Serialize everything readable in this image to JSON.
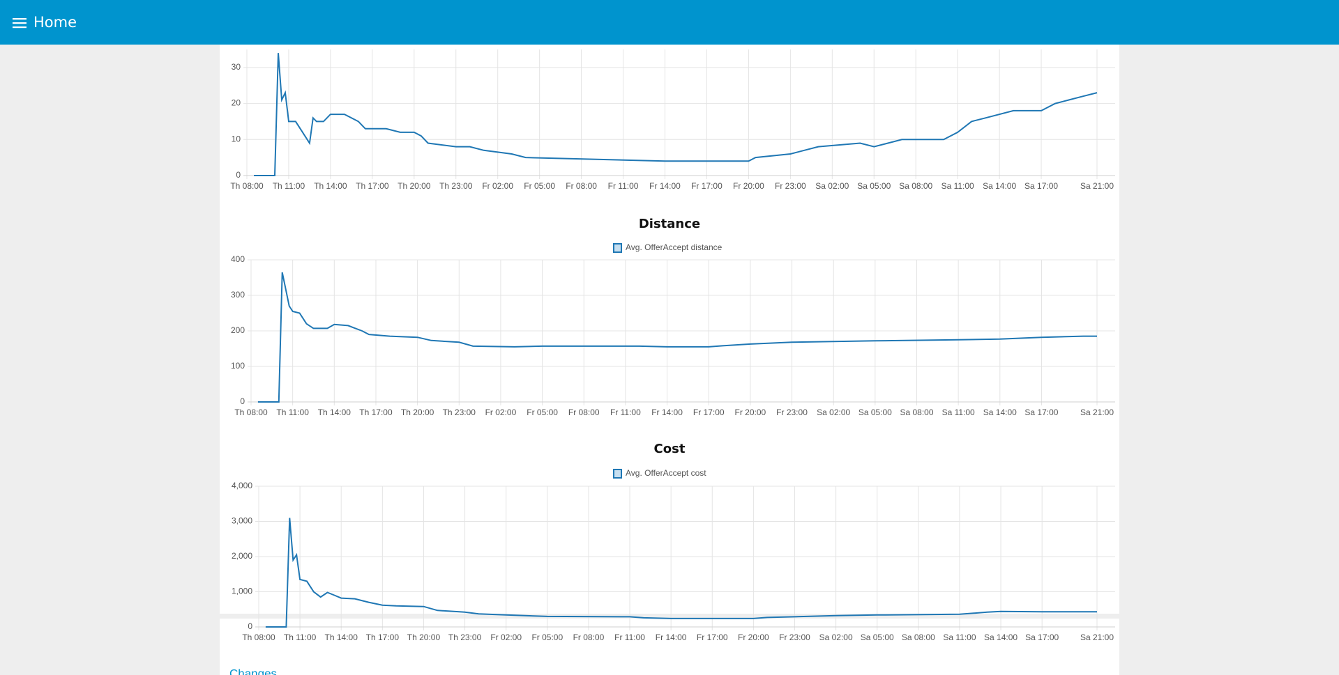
{
  "header": {
    "title": "Home"
  },
  "groups": [
    {
      "title": "Changes"
    }
  ],
  "chart_data": [
    {
      "type": "line",
      "series": [
        {
          "color": "#1f77b4",
          "x": [
            "Th 08:30",
            "Th 10:00",
            "Th 10:15",
            "Th 10:30",
            "Th 10:45",
            "Th 11:00",
            "Th 11:30",
            "Th 12:00",
            "Th 12:30",
            "Th 12:45",
            "Th 13:00",
            "Th 13:30",
            "Th 14:00",
            "Th 15:00",
            "Th 16:00",
            "Th 16:30",
            "Th 18:00",
            "Th 19:00",
            "Th 20:00",
            "Th 20:30",
            "Th 21:00",
            "Th 23:00",
            "Fr 00:00",
            "Fr 01:00",
            "Fr 03:00",
            "Fr 04:00",
            "Fr 14:00",
            "Fr 20:00",
            "Fr 20:30",
            "Fr 23:00",
            "Sa 00:00",
            "Sa 01:00",
            "Sa 04:00",
            "Sa 05:00",
            "Sa 06:00",
            "Sa 07:00",
            "Sa 10:00",
            "Sa 11:00",
            "Sa 12:00",
            "Sa 13:00",
            "Sa 15:00",
            "Sa 17:00",
            "Sa 18:00",
            "Sa 19:00",
            "Sa 20:00",
            "Sa 21:00"
          ],
          "values": [
            0,
            0,
            34,
            21,
            23,
            15,
            15,
            12,
            9,
            16,
            15,
            15,
            17,
            17,
            15,
            13,
            13,
            12,
            12,
            11,
            9,
            8,
            8,
            7,
            6,
            5,
            4,
            4,
            5,
            6,
            7,
            8,
            9,
            8,
            9,
            10,
            10,
            12,
            15,
            16,
            18,
            18,
            20,
            21,
            22,
            23
          ]
        }
      ],
      "xlim": [
        "Th 08:00",
        "Sa 21:00"
      ],
      "xticks": [
        "Th 08:00",
        "Th 11:00",
        "Th 14:00",
        "Th 17:00",
        "Th 20:00",
        "Th 23:00",
        "Fr 02:00",
        "Fr 05:00",
        "Fr 08:00",
        "Fr 11:00",
        "Fr 14:00",
        "Fr 17:00",
        "Fr 20:00",
        "Fr 23:00",
        "Sa 02:00",
        "Sa 05:00",
        "Sa 08:00",
        "Sa 11:00",
        "Sa 14:00",
        "Sa 17:00",
        "Sa 21:00"
      ],
      "ylim": [
        0,
        35
      ],
      "yticks": [
        0,
        10,
        20,
        30
      ],
      "grid": true
    },
    {
      "type": "line",
      "title": "Distance",
      "series": [
        {
          "name": "Avg. OfferAccept distance",
          "color": "#1f77b4",
          "x": [
            "Th 08:30",
            "Th 10:00",
            "Th 10:15",
            "Th 10:45",
            "Th 11:00",
            "Th 11:30",
            "Th 12:00",
            "Th 12:30",
            "Th 13:30",
            "Th 14:00",
            "Th 15:00",
            "Th 16:00",
            "Th 16:30",
            "Th 18:00",
            "Th 20:00",
            "Th 21:00",
            "Th 23:00",
            "Fr 00:00",
            "Fr 03:00",
            "Fr 05:00",
            "Fr 12:00",
            "Fr 14:00",
            "Fr 17:00",
            "Fr 18:00",
            "Fr 20:00",
            "Fr 23:00",
            "Sa 05:00",
            "Sa 11:00",
            "Sa 14:00",
            "Sa 17:00",
            "Sa 20:00",
            "Sa 21:00"
          ],
          "values": [
            0,
            0,
            365,
            270,
            255,
            250,
            220,
            207,
            207,
            218,
            215,
            200,
            190,
            185,
            182,
            173,
            168,
            157,
            155,
            157,
            157,
            155,
            155,
            158,
            163,
            168,
            172,
            175,
            177,
            182,
            185,
            185
          ]
        }
      ],
      "xlim": [
        "Th 08:00",
        "Sa 21:00"
      ],
      "xticks": [
        "Th 08:00",
        "Th 11:00",
        "Th 14:00",
        "Th 17:00",
        "Th 20:00",
        "Th 23:00",
        "Fr 02:00",
        "Fr 05:00",
        "Fr 08:00",
        "Fr 11:00",
        "Fr 14:00",
        "Fr 17:00",
        "Fr 20:00",
        "Fr 23:00",
        "Sa 02:00",
        "Sa 05:00",
        "Sa 08:00",
        "Sa 11:00",
        "Sa 14:00",
        "Sa 17:00",
        "Sa 21:00"
      ],
      "ylim": [
        0,
        400
      ],
      "yticks": [
        0,
        100,
        200,
        300,
        400
      ],
      "grid": true,
      "legend": "top"
    },
    {
      "type": "line",
      "title": "Cost",
      "series": [
        {
          "name": "Avg. OfferAccept cost",
          "color": "#1f77b4",
          "x": [
            "Th 08:30",
            "Th 10:00",
            "Th 10:15",
            "Th 10:30",
            "Th 10:45",
            "Th 11:00",
            "Th 11:30",
            "Th 12:00",
            "Th 12:30",
            "Th 13:00",
            "Th 13:30",
            "Th 14:00",
            "Th 15:00",
            "Th 16:00",
            "Th 17:00",
            "Th 18:00",
            "Th 20:00",
            "Th 21:00",
            "Th 23:00",
            "Fr 00:00",
            "Fr 02:00",
            "Fr 05:00",
            "Fr 11:00",
            "Fr 12:00",
            "Fr 14:00",
            "Fr 20:00",
            "Fr 21:00",
            "Fr 23:00",
            "Sa 02:00",
            "Sa 05:00",
            "Sa 11:00",
            "Sa 13:00",
            "Sa 14:00",
            "Sa 17:00",
            "Sa 21:00"
          ],
          "values": [
            0,
            0,
            3100,
            1900,
            2050,
            1350,
            1300,
            1000,
            850,
            980,
            900,
            820,
            800,
            700,
            620,
            600,
            580,
            470,
            420,
            370,
            340,
            300,
            290,
            260,
            240,
            240,
            270,
            290,
            320,
            340,
            360,
            420,
            440,
            430,
            430
          ]
        }
      ],
      "xlim": [
        "Th 08:00",
        "Sa 21:00"
      ],
      "xticks": [
        "Th 08:00",
        "Th 11:00",
        "Th 14:00",
        "Th 17:00",
        "Th 20:00",
        "Th 23:00",
        "Fr 02:00",
        "Fr 05:00",
        "Fr 08:00",
        "Fr 11:00",
        "Fr 14:00",
        "Fr 17:00",
        "Fr 20:00",
        "Fr 23:00",
        "Sa 02:00",
        "Sa 05:00",
        "Sa 08:00",
        "Sa 11:00",
        "Sa 14:00",
        "Sa 17:00",
        "Sa 21:00"
      ],
      "ylim": [
        0,
        4000
      ],
      "yticks": [
        0,
        {
          "value": 1000,
          "label": "1,000"
        },
        {
          "value": 2000,
          "label": "2,000"
        },
        {
          "value": 3000,
          "label": "3,000"
        },
        {
          "value": 4000,
          "label": "4,000"
        }
      ],
      "grid": true,
      "legend": "top"
    }
  ]
}
